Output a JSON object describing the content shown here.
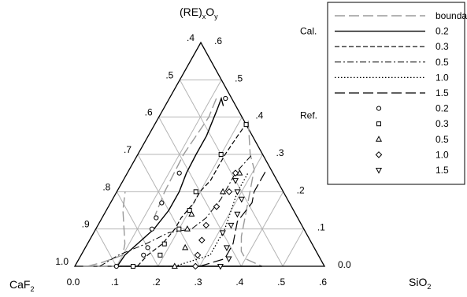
{
  "chart_data": {
    "type": "scatter",
    "subtype": "ternary",
    "vertices": {
      "top": {
        "main": "(RE)",
        "sub1": "x",
        "mid": "O",
        "sub2": "y"
      },
      "left": {
        "main": "CaF",
        "sub": "2"
      },
      "right": {
        "main": "SiO",
        "sub": "2"
      }
    },
    "axes": {
      "bottom_ticks": [
        "0.0",
        ".1",
        ".2",
        ".3",
        ".4",
        ".5",
        ".6"
      ],
      "left_ticks": [
        "1.0",
        ".9",
        ".8",
        ".7",
        ".6",
        ".5",
        ".4"
      ],
      "right_ticks": [
        "0.0",
        ".1",
        ".2",
        ".3",
        ".4",
        ".5",
        ".6"
      ],
      "range": [
        0,
        0.6
      ],
      "grid": true
    },
    "legend": {
      "position": "right",
      "group_labels": {
        "cal": "Cal.",
        "ref": "Ref."
      },
      "entries": [
        {
          "label": "boundary",
          "kind": "line",
          "style": "boundary",
          "group": ""
        },
        {
          "label": "0.2",
          "kind": "line",
          "style": "solid",
          "group": "cal"
        },
        {
          "label": "0.3",
          "kind": "line",
          "style": "dash",
          "group": ""
        },
        {
          "label": "0.5",
          "kind": "line",
          "style": "dashdot",
          "group": ""
        },
        {
          "label": "1.0",
          "kind": "line",
          "style": "dot",
          "group": ""
        },
        {
          "label": "1.5",
          "kind": "line",
          "style": "longdash",
          "group": ""
        },
        {
          "label": "0.2",
          "kind": "marker",
          "marker": "circle",
          "group": "ref"
        },
        {
          "label": "0.3",
          "kind": "marker",
          "marker": "square",
          "group": ""
        },
        {
          "label": "0.5",
          "kind": "marker",
          "marker": "triangle",
          "group": ""
        },
        {
          "label": "1.0",
          "kind": "marker",
          "marker": "diamond",
          "group": ""
        },
        {
          "label": "1.5",
          "kind": "marker",
          "marker": "invtriangle",
          "group": ""
        }
      ]
    },
    "lines": [
      {
        "name": "boundary",
        "style": "boundary",
        "points": [
          [
            0.03,
            0.0
          ],
          [
            0.06,
            0.01
          ],
          [
            0.1,
            0.03
          ],
          [
            0.09,
            0.06
          ],
          [
            0.04,
            0.15
          ],
          [
            0.02,
            0.2
          ]
        ]
      },
      {
        "name": "boundary",
        "style": "boundary",
        "points": [
          [
            0.113,
            0.45
          ],
          [
            0.12,
            0.4
          ],
          [
            0.11,
            0.3
          ],
          [
            0.115,
            0.2
          ],
          [
            0.125,
            0.13
          ]
        ]
      },
      {
        "name": "boundary",
        "style": "boundary",
        "points": [
          [
            0.22,
            0.39
          ],
          [
            0.27,
            0.3
          ],
          [
            0.3,
            0.26
          ],
          [
            0.32,
            0.2
          ],
          [
            0.34,
            0.14
          ],
          [
            0.36,
            0.08
          ],
          [
            0.38,
            0.04
          ],
          [
            0.4,
            0.02
          ],
          [
            0.45,
            0.0
          ]
        ]
      },
      {
        "name": "boundary",
        "style": "boundary",
        "points": [
          [
            0.02,
            0.0
          ],
          [
            0.3,
            0.0
          ]
        ]
      },
      {
        "name": "0.2",
        "style": "solid",
        "points": [
          [
            0.102,
            0.0
          ],
          [
            0.105,
            0.03
          ],
          [
            0.12,
            0.06
          ],
          [
            0.14,
            0.1
          ],
          [
            0.15,
            0.15
          ],
          [
            0.15,
            0.2
          ],
          [
            0.142,
            0.25
          ],
          [
            0.14,
            0.3
          ],
          [
            0.14,
            0.35
          ],
          [
            0.13,
            0.42
          ],
          [
            0.125,
            0.45
          ],
          [
            0.14,
            0.43
          ]
        ]
      },
      {
        "name": "0.3",
        "style": "dash",
        "points": [
          [
            0.15,
            0.0
          ],
          [
            0.16,
            0.03
          ],
          [
            0.18,
            0.06
          ],
          [
            0.19,
            0.1
          ],
          [
            0.19,
            0.13
          ],
          [
            0.2,
            0.17
          ],
          [
            0.2,
            0.2
          ],
          [
            0.21,
            0.23
          ],
          [
            0.21,
            0.3
          ],
          [
            0.215,
            0.35
          ],
          [
            0.22,
            0.39
          ]
        ]
      },
      {
        "name": "0.5",
        "style": "dashdot",
        "points": [
          [
            0.06,
            0.0
          ],
          [
            0.09,
            0.03
          ],
          [
            0.14,
            0.06
          ],
          [
            0.18,
            0.09
          ],
          [
            0.23,
            0.1
          ],
          [
            0.25,
            0.13
          ],
          [
            0.26,
            0.18
          ],
          [
            0.26,
            0.25
          ],
          [
            0.275,
            0.3
          ]
        ]
      },
      {
        "name": "1.0",
        "style": "dot",
        "points": [
          [
            0.24,
            0.0
          ],
          [
            0.31,
            0.03
          ],
          [
            0.31,
            0.06
          ],
          [
            0.31,
            0.1
          ],
          [
            0.3,
            0.15
          ],
          [
            0.29,
            0.2
          ],
          [
            0.29,
            0.25
          ]
        ]
      },
      {
        "name": "1.5",
        "style": "longdash",
        "points": [
          [
            0.3,
            0.0
          ],
          [
            0.35,
            0.02
          ],
          [
            0.35,
            0.06
          ],
          [
            0.33,
            0.12
          ],
          [
            0.34,
            0.17
          ],
          [
            0.33,
            0.2
          ],
          [
            0.33,
            0.26
          ]
        ]
      },
      {
        "name": "base",
        "style": "solid",
        "points": [
          [
            0.102,
            0.0
          ],
          [
            0.45,
            0.0
          ]
        ]
      }
    ],
    "markers": [
      {
        "series": "0.2",
        "marker": "circle",
        "points": [
          [
            0.1,
            0.0
          ],
          [
            0.15,
            0.03
          ],
          [
            0.15,
            0.05
          ],
          [
            0.135,
            0.1
          ],
          [
            0.13,
            0.13
          ],
          [
            0.123,
            0.17
          ],
          [
            0.125,
            0.25
          ],
          [
            0.135,
            0.45
          ]
        ]
      },
      {
        "series": "0.3",
        "marker": "square",
        "points": [
          [
            0.14,
            0.0
          ],
          [
            0.19,
            0.03
          ],
          [
            0.185,
            0.06
          ],
          [
            0.2,
            0.1
          ],
          [
            0.2,
            0.15
          ],
          [
            0.19,
            0.2
          ],
          [
            0.2,
            0.3
          ],
          [
            0.22,
            0.38
          ]
        ]
      },
      {
        "series": "0.5",
        "marker": "triangle",
        "points": [
          [
            0.24,
            0.0
          ],
          [
            0.24,
            0.05
          ],
          [
            0.22,
            0.1
          ],
          [
            0.21,
            0.14
          ],
          [
            0.255,
            0.2
          ],
          [
            0.27,
            0.25
          ]
        ]
      },
      {
        "series": "1.0",
        "marker": "diamond",
        "points": [
          [
            0.29,
            0.0
          ],
          [
            0.28,
            0.03
          ],
          [
            0.27,
            0.07
          ],
          [
            0.26,
            0.11
          ],
          [
            0.26,
            0.16
          ],
          [
            0.27,
            0.2
          ],
          [
            0.26,
            0.25
          ]
        ]
      },
      {
        "series": "1.5",
        "marker": "invtriangle",
        "points": [
          [
            0.35,
            0.0
          ],
          [
            0.36,
            0.02
          ],
          [
            0.34,
            0.05
          ],
          [
            0.31,
            0.09
          ],
          [
            0.32,
            0.11
          ],
          [
            0.32,
            0.14
          ],
          [
            0.31,
            0.18
          ],
          [
            0.29,
            0.2
          ],
          [
            0.27,
            0.23
          ]
        ]
      }
    ]
  }
}
